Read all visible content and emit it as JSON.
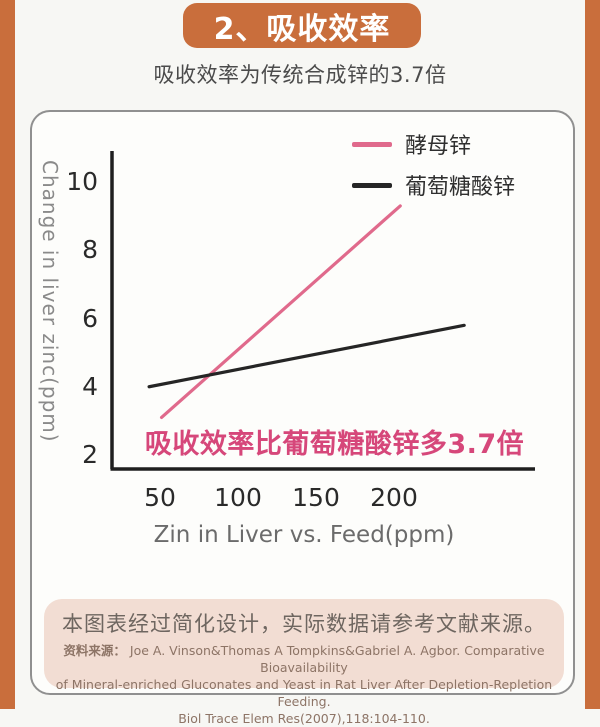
{
  "page": {
    "title": "2、吸收效率",
    "subtitle": "吸收效率为传统合成锌的3.7倍"
  },
  "colors": {
    "accent_orange": "#c96e3c",
    "pink_line": "#e06a8c",
    "pink_annotation": "#d6477a",
    "black_line": "#252525",
    "source_box_bg": "#f2ddd3",
    "page_bg": "#f7f7f4"
  },
  "chart_data": {
    "type": "line",
    "title": "",
    "xlabel": "Zin in Liver vs. Feed(ppm)",
    "ylabel": "Change in liver zinc(ppm)",
    "x_ticks": [
      50,
      100,
      150,
      200
    ],
    "y_ticks": [
      2,
      4,
      6,
      8,
      10
    ],
    "xlim": [
      18,
      288
    ],
    "ylim": [
      1.6,
      10.9
    ],
    "grid": false,
    "legend_position": "top-right",
    "annotation": "吸收效率比葡萄糖酸锌多3.7倍",
    "series": [
      {
        "name": "酵母锌",
        "color": "#e06a8c",
        "x": [
          51,
          204
        ],
        "y": [
          3.1,
          9.3
        ]
      },
      {
        "name": "葡萄糖酸锌",
        "color": "#252525",
        "x": [
          43,
          245
        ],
        "y": [
          4.0,
          5.8
        ]
      }
    ]
  },
  "source": {
    "heading": "本图表经过简化设计，实际数据请参考文献来源。",
    "label": "资料来源：",
    "citation_line1": "Joe A. Vinson&Thomas A Tompkins&Gabriel A. Agbor. Comparative Bioavailability",
    "citation_line2": "of Mineral-enriched Gluconates and Yeast in Rat Liver After Depletion-Repletion Feeding.",
    "citation_line3": "Biol Trace Elem Res(2007),118:104-110."
  }
}
